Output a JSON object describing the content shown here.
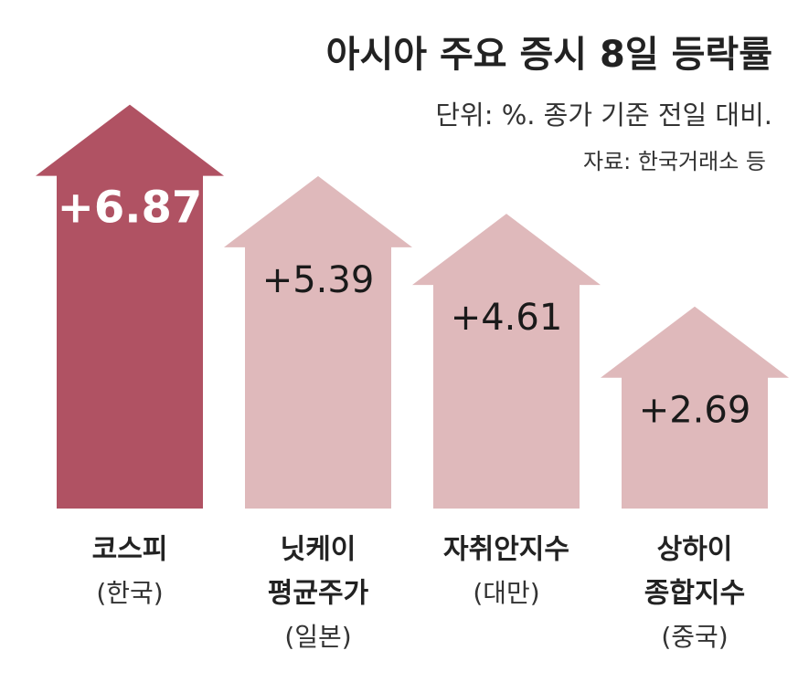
{
  "chart_data": {
    "type": "arrow-bar",
    "title": "아시아 주요 증시 8일 등락률",
    "subtitle": "단위: %. 종가 기준 전일 대비.",
    "source": "자료: 한국거래소 등",
    "categories": [
      [
        "코스피"
      ],
      [
        "닛케이",
        "평균주가"
      ],
      [
        "자취안지수"
      ],
      [
        "상하이",
        "종합지수"
      ]
    ],
    "category_notes": [
      "(한국)",
      "(일본)",
      "(대만)",
      "(중국)"
    ],
    "values": [
      6.87,
      5.39,
      4.61,
      2.69
    ],
    "value_labels": [
      "+6.87",
      "+5.39",
      "+4.61",
      "+2.69"
    ],
    "colors": [
      "#b05263",
      "#dfb9bb",
      "#dfb9bb",
      "#dfb9bb"
    ]
  }
}
